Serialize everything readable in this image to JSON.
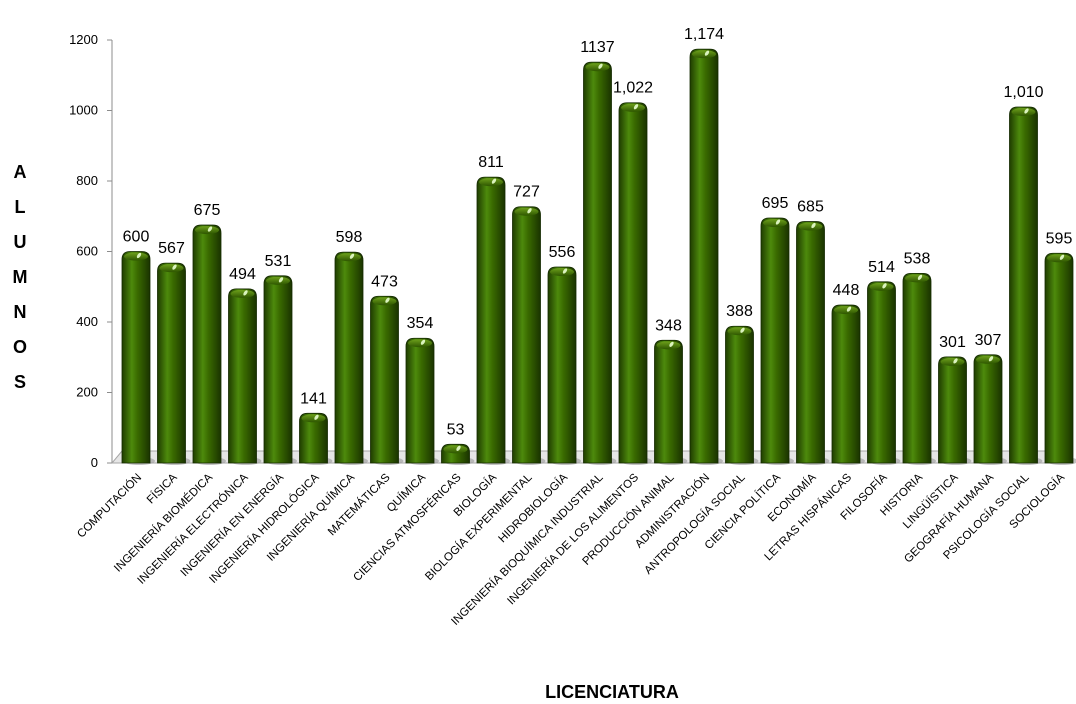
{
  "chart_data": {
    "type": "bar",
    "categories": [
      "COMPUTACIÓN",
      "FÍSICA",
      "INGENIERÍA BIOMÉDICA",
      "INGENIERÍA ELECTRÓNICA",
      "INGENIERÍA EN ENERGÍA",
      "INGENIERÍA HIDROLÓGICA",
      "INGENIERÍA QUÍMICA",
      "MATEMÁTICAS",
      "QUÍMICA",
      "CIENCIAS ATMOSFÉRICAS",
      "BIOLOGÍA",
      "BIOLOGÍA EXPERIMENTAL",
      "HIDROBIOLOGÍA",
      "INGENIERÍA BIOQUÍMICA INDUSTRIAL",
      "INGENIERÍA DE LOS ALIMENTOS",
      "PRODUCCIÓN ANIMAL",
      "ADMINISTRACIÓN",
      "ANTROPOLOGÍA SOCIAL",
      "CIENCIA POLÍTICA",
      "ECONOMÍA",
      "LETRAS HISPÁNICAS",
      "FILOSOFÍA",
      "HISTORIA",
      "LINGÜÍSTICA",
      "GEOGRAFÍA HUMANA",
      "PSICOLOGÍA SOCIAL",
      "SOCIOLOGÍA"
    ],
    "values": [
      600,
      567,
      675,
      494,
      531,
      141,
      598,
      473,
      354,
      53,
      811,
      727,
      556,
      1137,
      1022,
      348,
      1174,
      388,
      695,
      685,
      448,
      514,
      538,
      301,
      307,
      1010,
      595
    ],
    "data_labels": [
      "600",
      "567",
      "675",
      "494",
      "531",
      "141",
      "598",
      "473",
      "354",
      "53",
      "811",
      "727",
      "556",
      "1137",
      "1,022",
      "348",
      "1,174",
      "388",
      "695",
      "685",
      "448",
      "514",
      "538",
      "301",
      "307",
      "1,010",
      "595"
    ],
    "xlabel": "LICENCIATURA",
    "ylabel": "ALUMNOS",
    "ylim": [
      0,
      1200
    ],
    "yticks": [
      "0",
      "200",
      "400",
      "600",
      "800",
      "1000",
      "1200"
    ],
    "grid": false,
    "bar_color": "#3a6b00",
    "bar_dark": "#1f3d00",
    "bar_light": "#6ea11c"
  }
}
